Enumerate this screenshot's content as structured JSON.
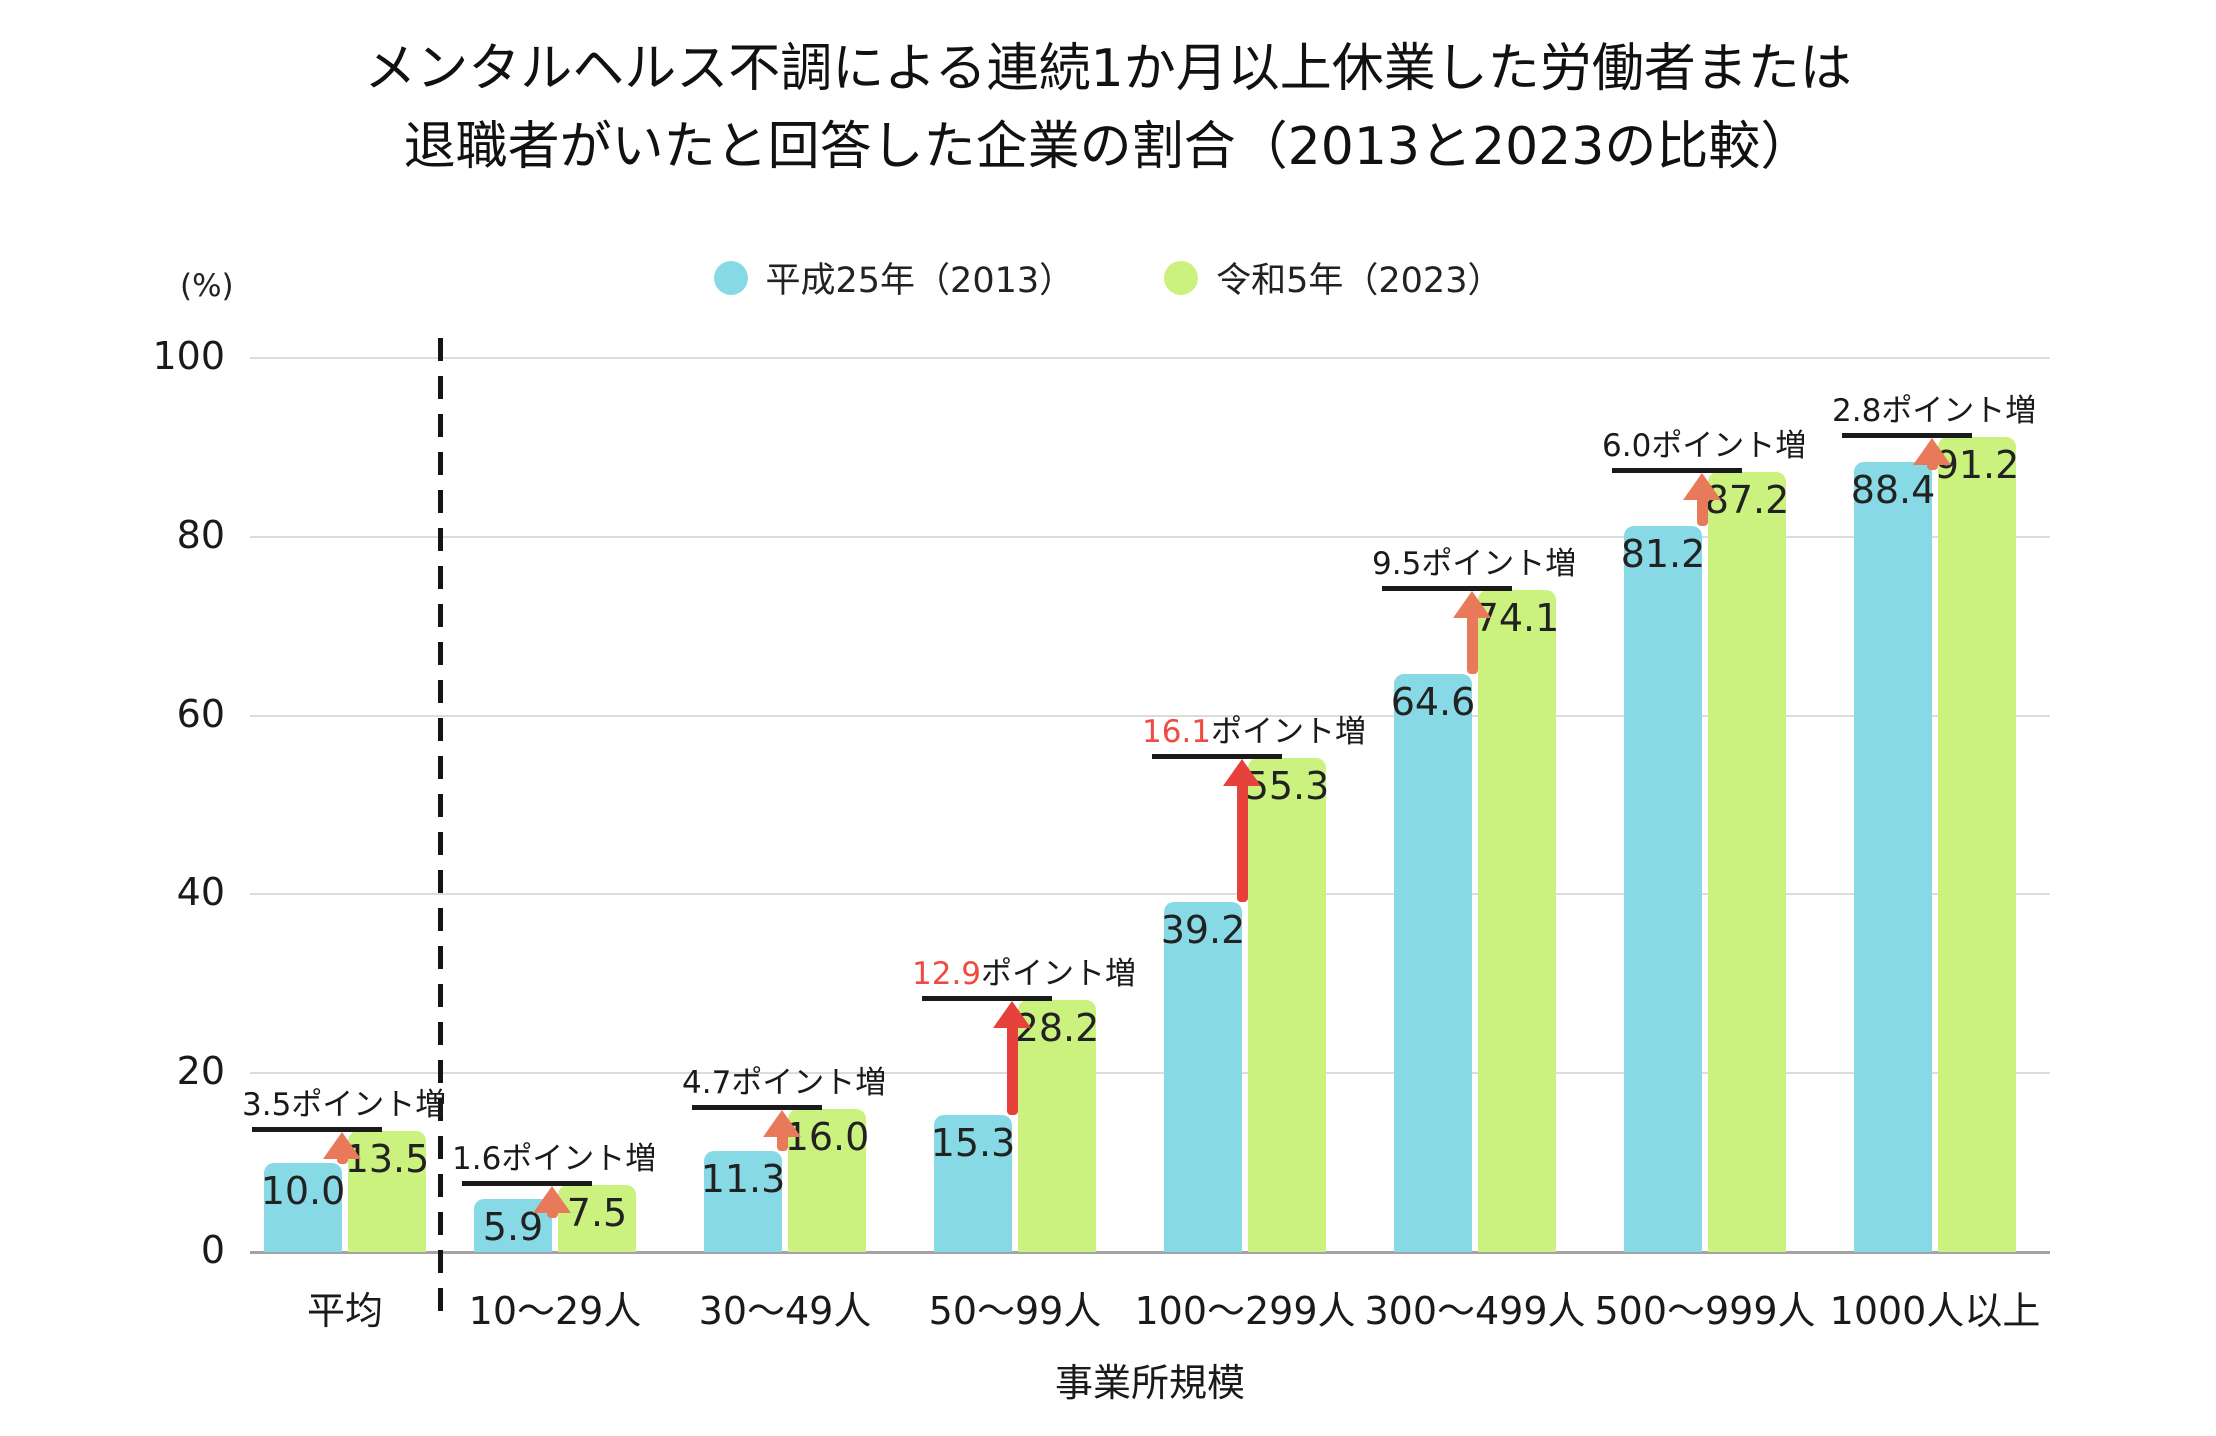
{
  "title": {
    "line1": "メンタルヘルス不調による連続1か月以上休業した労働者または",
    "line2": "退職者がいたと回答した企業の割合（2013と2023の比較）"
  },
  "y_axis": {
    "unit_label": "(%)",
    "ticks": [
      "0",
      "20",
      "40",
      "60",
      "80",
      "100"
    ],
    "max": 100
  },
  "x_axis": {
    "title": "事業所規模"
  },
  "legend": [
    {
      "label": "平成25年（2013）",
      "color": "#87dae5"
    },
    {
      "label": "令和5年（2023）",
      "color": "#cbf17e"
    }
  ],
  "chart_data": {
    "type": "bar",
    "categories": [
      "平均",
      "10〜29人",
      "30〜49人",
      "50〜99人",
      "100〜299人",
      "300〜499人",
      "500〜999人",
      "1000人以上"
    ],
    "series": [
      {
        "name": "平成25年（2013）",
        "color": "#87dae5",
        "values": [
          "10.0",
          "5.9",
          "11.3",
          "15.3",
          "39.2",
          "64.6",
          "81.2",
          "88.4"
        ]
      },
      {
        "name": "令和5年（2023）",
        "color": "#cbf17e",
        "values": [
          "13.5",
          "7.5",
          "16.0",
          "28.2",
          "55.3",
          "74.1",
          "87.2",
          "91.2"
        ]
      }
    ],
    "annotations": [
      {
        "delta": "3.5",
        "suffix": "ポイント増",
        "highlight": false
      },
      {
        "delta": "1.6",
        "suffix": "ポイント増",
        "highlight": false
      },
      {
        "delta": "4.7",
        "suffix": "ポイント増",
        "highlight": false
      },
      {
        "delta": "12.9",
        "suffix": "ポイント増",
        "highlight": true
      },
      {
        "delta": "16.1",
        "suffix": "ポイント増",
        "highlight": true
      },
      {
        "delta": "9.5",
        "suffix": "ポイント増",
        "highlight": false
      },
      {
        "delta": "6.0",
        "suffix": "ポイント増",
        "highlight": false
      },
      {
        "delta": "2.8",
        "suffix": "ポイント増",
        "highlight": false
      }
    ],
    "ylim": [
      0,
      100
    ],
    "grid": true,
    "legend_position": "top",
    "separator_after_index": 0
  },
  "colors": {
    "bar_2013": "#87dae5",
    "bar_2023": "#cbf17e",
    "arrow": "#e8795a",
    "arrow_highlight": "#e6413a",
    "delta_text_highlight": "#ef4b42",
    "delta_text": "#1a1a1a",
    "annotation_line": "#1a1a1a",
    "grid": "#dcdcdc",
    "axis": "#a3a3a3",
    "text": "#1a1a1a",
    "background": "#ffffff"
  }
}
